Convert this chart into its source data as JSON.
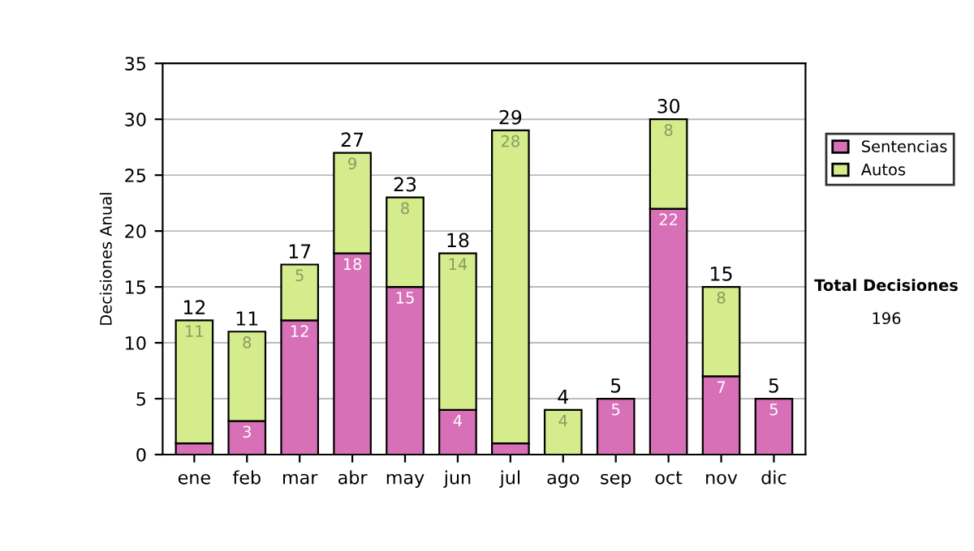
{
  "chart_data": {
    "type": "bar",
    "stacked": true,
    "ylabel": "Decisiones Anual",
    "categories": [
      "ene",
      "feb",
      "mar",
      "abr",
      "may",
      "jun",
      "jul",
      "ago",
      "sep",
      "oct",
      "nov",
      "dic"
    ],
    "series": [
      {
        "name": "Sentencias",
        "color": "#d870b8",
        "values": [
          1,
          3,
          12,
          18,
          15,
          4,
          1,
          0,
          5,
          22,
          7,
          5
        ],
        "value_labels": [
          null,
          "3",
          "12",
          "18",
          "15",
          "4",
          null,
          null,
          "5",
          "22",
          "7",
          "5"
        ]
      },
      {
        "name": "Autos",
        "color": "#d4ec8c",
        "values": [
          11,
          8,
          5,
          9,
          8,
          14,
          28,
          4,
          0,
          8,
          8,
          0
        ],
        "value_labels": [
          "11",
          "8",
          "5",
          "9",
          "8",
          "14",
          "28",
          "4",
          null,
          "8",
          "8",
          null
        ]
      }
    ],
    "totals": [
      "12",
      "11",
      "17",
      "27",
      "23",
      "18",
      "29",
      "4",
      "5",
      "30",
      "15",
      "5"
    ],
    "ylim": [
      0,
      35
    ],
    "yticks": [
      0,
      5,
      10,
      15,
      20,
      25,
      30,
      35
    ],
    "grid": "y",
    "legend": "right",
    "annotations": [
      "Total Decisiones",
      "196"
    ]
  }
}
